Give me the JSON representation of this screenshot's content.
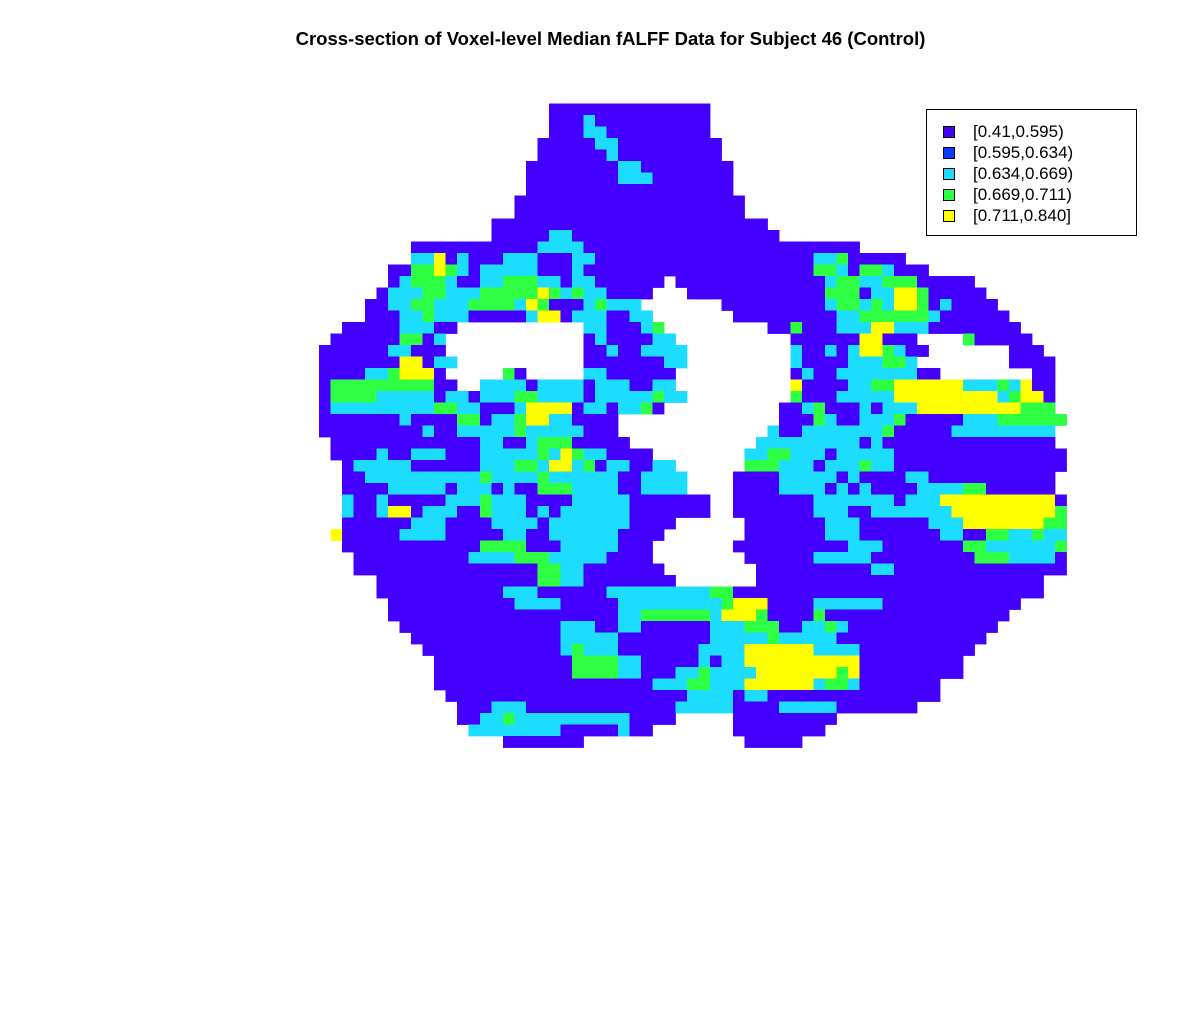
{
  "chart_data": {
    "type": "heatmap",
    "title": "Cross-section of Voxel-level Median fALFF Data for Subject 46 (Control)",
    "xlabel": "",
    "ylabel": "",
    "grid": false,
    "legend_position": "top-right",
    "legend": [
      {
        "label": "[0.41,0.595)",
        "color": "#4400FF"
      },
      {
        "label": "[0.595,0.634)",
        "color": "#0C3BFF"
      },
      {
        "label": "[0.634,0.669)",
        "color": "#1CDCFF"
      },
      {
        "label": "[0.669,0.711)",
        "color": "#2EFF43"
      },
      {
        "label": "[0.711,0.840]",
        "color": "#FFFF00"
      }
    ],
    "levels": [
      "......................................................................",
      "..........................BBBBBBBBBBBBBB..............................",
      "..........................BBBCBBBBBBBBBB..............................",
      "..........................BBBCCBBBBBBBBB..............................",
      ".........................BBBBBCCBBBBBBBBB.............................",
      ".........................BBBBBBCBBBBBBBBB.............................",
      "........................BBBBBBBBCCBBBBBBBB............................",
      "........................BBBBBBBBCCCBBBBBBB............................",
      "........................BBBBBBBBBBBBBBBBBB............................",
      ".......................BBBBBBBBBBBBBBBBBBBB...........................",
      ".......................BBBBBBBBBBBBBBBBBBBB...........................",
      ".....................BBBBBBBBBBBBBBBBBBBBBBBB.........................",
      ".....................BBBBBCCBBBBBBBBBBBBBBBBBB........................",
      "..............BBBBBBBBBBBCCCCBBBBBBBBBBBBBBBBBBBBBBBB.................",
      "..............CCEBCBBBCCCBBBCCBBBBBBBBBBBBBBBBBBBCCDBBBBB..............",
      "............BBDDEDCBCCCCCBBBCBBBBBBBBBBBBBBBBBBBBDDCBDDCBBB............",
      "............BCDDDCBBCCDDDCCBCCBBBBBB.BBBBBBBBBBBBBCDDCCDDDBBBBB........",
      "...........BCCCDDCCCDDDDDEDCDCCBBBB...BBBBBBBBBBBBDDDBCCEEDBBBBB.......",
      "..........BBCCDDCCCDDDDCEDBBBCDCCC.......BBBBBBBBBCDDCDCEEDBCBBBB......",
      "..........BBBCCDCCCBBBBBCEEBCCCBBCC.......BBBBBBBBBCCDDDDDDCBBBBBB.....",
      "........BBBBBCCCBB...........CCBBBCD.........BBDBBBCCCEECCCBBBBBBBB....",
      ".......BBBBBBDDBC............BCBBBBCC..........BBBBBBEEBBB....DBBBBB....",
      "......BBBBBBCCBBB............BBCBBCCCC.........CBBCBCEEDCBB.......BBB..",
      "......BBBBBBBEEBCC...........BBBBBBBCC.........CBBBBCCCDDC........BBBB.",
      "......BBBBCCDEEEB.....DB.....CCBBBBBB..........BCBBCCCCCCCBB........BB.",
      "......BDDDDDDDDDBB..CCCCBCCCCBCCCBBCC..........EBBBBCCDDEEEEEECCCDCEBB.",
      "......BDDDDCCCCCBCCBCCCDDCCCCBCCCCCDCC.........DBBBCCCCCEEEEEEEEECDEEB.",
      "......BCCCCCCCCCDDCCBBBCEEEEBCCBCCDB..........BBCDBBBCBCCCEEEEEEEEEDDD.",
      "......BBBBBBBCBBBBDDBCCDEECCBBBB..............BBBDCBBCCCDBBBBBCCCDDDDDD",
      "......BBBBBBBBBCBBCCCCCDCCCCCBBB.............CBBCCCCCCCDBBBBBCCCCCCCCC",
      ".......BBBBBBBBBBBBBCCBBCDDDBBBBB...........CCCCCCCCCBCBBBBBBBBBBBBBBB",
      ".......BBBBCBBCCCBBBCCCCCDCEDCCBBBB........CCDDCCCBCCCCCBBBBBBBBBBBBBBB",
      "........BCCCCCBBBBBBCCCDDCEECDBCCBBCC......DDDCCCBCCCDCCBBBBBBBBBBBBBBB",
      "........BBCCCCCCCCCCDCCCCDCCCCCCBBCCCC....BBBBCCCCCBCBBBBCCBBBBBBBBBBB.",
      "........BBBBCCCCCBCCCBCBBDDDCCCCBBCCCC....BBBBCCCCBCBCBBBBCCCCDDBBBBBB.",
      "........CBBCBBBBBCCCDCCCBBBBCCCCCBBBBBBB..BBBBBBBCCCCCCCBCCCEEEEEEEEEEB",
      "........CBBCEEBCCCBBDCCCBCBCCCCCCBBBBBBB..BBBBBBBCCCBBCCCCCCCEEEEEEEEED",
      "........BBBBBBCCCBBBBCCCCBCCCCCCCBBBB......BBBBBBBCCCBBBBBBCCCEEEEEEEDD",
      ".......EBBBBBCCCCBBBBBCCBBCCCCCCBBBB.......BBBBBBBCCCBBBBBBBCCBBDDCCDCC",
      "........BBBBBBBBBBBBDDDDBBBCCCCCBBB.......BBBBBBBBBBCCCBBBBBBBDDCCCCCCD",
      ".........BBBBBBBBBBCCCCDDDCCCCCBBBB........BBBBBBCCCCCBBBBBBBBBDDDCCCCB",
      ".........BBBBBBBBBBBBBBBBDDCCBBBBBBB........BBBBBBBBBBCCBBBBBBBBBBBBBBB",
      "...........BBBBBBBBBBBBBBDDCCBBBBBBBB.......BBBBBBBBBBBBBBBBBBBBBBBBB.",
      "...........BBBBBBBBBBBCCCBBBBBBCCCCCCCCCDDBBBBBBBBBBBBBBBBBBBBBBBBBBB.",
      "............BBBBBBBBBBBCCCCBBBBBCCCCCCCCCDEEEBBBBCCCCCCBBBBBBBBBBBB...",
      "............BBBBBBBBBBBBBBBBBBBBCCDDDDDDCEEEDBBBBDBBBBBBBBBBBBBBBB....",
      ".............BBBBBBBBBBBBBBCCCBBCCBBBBBBCCCDDDBBCCDCBBBBBBBBBBBBB.....",
      "..............BBBBBBBBBBBBBCCCCCBBBBBBBBCCCCCDCCCCCBBBBBBBBBBBBB......",
      "...............BBBBBBBBBBBBCDCCCBBBBBBBCCCCEEEEEECCCCBBBBBBBBBB.......",
      "................BBBBBBBBBBBBDDDDCCBBBBBCBCCEEEEEEEEEEBBBBBBBBB........",
      "................BBBBBBBBBBBBDDDDCCBBBCCDCCCCEEEEEEEDEBBBBBBBBB........",
      "................BBBBBBBBBBBBBBBBBBBCCCDDCCCEEEEEECDDCBBBBBBB..........",
      ".................BBBBBBBBBBBBBBBBBBBBBCCCCBCCBBBBBBBBBBBBBBB..........",
      "..................BBBCCCBBBBBBBBBBBBBCCCCCBBBBCCCCCBBBBBBB............",
      "..................BBCCDCCCCCCCCCCBBBB.....BBBBBBBBB...................",
      "...................CCCCCCCCBBBBBCBB.......BBBBBBBB....................",
      "......................BBBBBBB..............BBBBB......................",
      "......................................................................"
    ]
  }
}
